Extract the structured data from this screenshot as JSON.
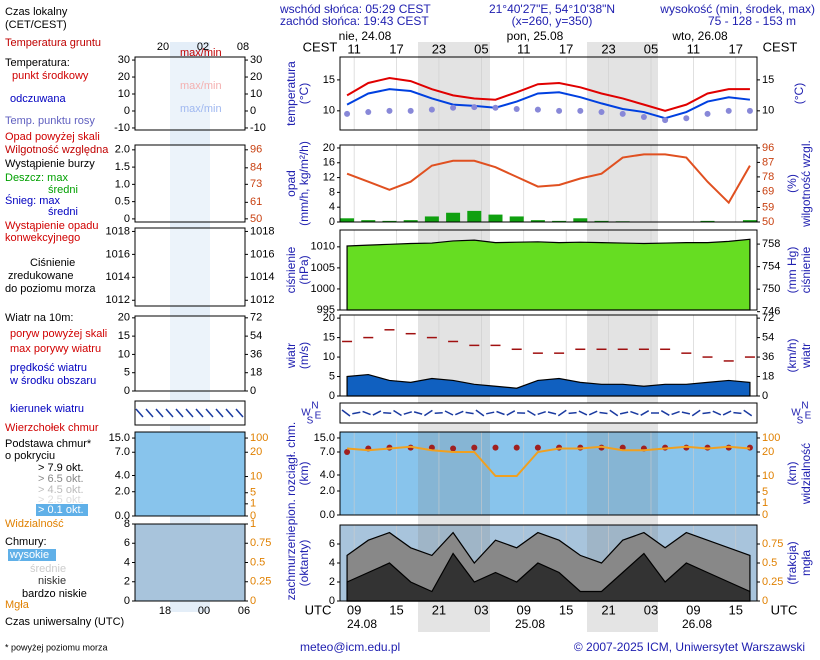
{
  "header": {
    "sunrise": "wschód słońca: 05:29 CEST",
    "sunset": "zachód słońca: 19:43 CEST",
    "coords": "21°40'27\"E, 54°10'38\"N",
    "grid": "(x=260, y=350)",
    "elevation_title": "wysokość (min, środek, max)",
    "elevation": "75 - 128 - 153 m"
  },
  "time_axis": {
    "local_label": "CEST",
    "utc_label": "UTC",
    "xlim": [
      7,
      66
    ],
    "local_ticks": [
      {
        "value": 9,
        "label": "11"
      },
      {
        "value": 15,
        "label": "17"
      },
      {
        "value": 21,
        "label": "23"
      },
      {
        "value": 27,
        "label": "05"
      },
      {
        "value": 33,
        "label": "11"
      },
      {
        "value": 39,
        "label": "17"
      },
      {
        "value": 45,
        "label": "23"
      },
      {
        "value": 51,
        "label": "05"
      },
      {
        "value": 57,
        "label": "11"
      },
      {
        "value": 63,
        "label": "17"
      }
    ],
    "utc_ticks": [
      {
        "value": 9,
        "label": "09"
      },
      15,
      21,
      {
        "value": 27,
        "label": "03"
      },
      {
        "value": 33,
        "label": "09"
      },
      {
        "value": 39,
        "label": "15"
      },
      {
        "value": 45,
        "label": "21"
      },
      {
        "value": 51,
        "label": "03"
      },
      {
        "value": 57,
        "label": "09"
      },
      {
        "value": 63,
        "label": "15"
      }
    ],
    "days_local": [
      "nie, 24.08",
      "pon, 25.08",
      "wto, 26.08"
    ],
    "days_utc": [
      "24.08",
      "25.08",
      "26.08"
    ],
    "compass": [
      "N",
      "W",
      "E",
      "S"
    ]
  },
  "legend": {
    "items": [
      "Czas lokalny",
      "(CET/CEST)",
      "Temperatura gruntu",
      "max/min",
      "Temperatura:",
      "punkt środkowy",
      "max/min",
      "odczuwana",
      "max/min",
      "Temp. punktu rosy",
      "Opad powyżej skali",
      "Wilgotność względna",
      "Wystąpienie burzy",
      "Deszcz: max",
      "średni",
      "Śnieg: max",
      "średni",
      "Wystąpienie opadu",
      "konwekcyjnego",
      "Ciśnienie",
      "zredukowane",
      "do poziomu morza",
      "Wiatr na 10m:",
      "poryw powyżej skali",
      "max porywy wiatru",
      "prędkość wiatru",
      "w środku obszaru",
      "kierunek wiatru",
      "Wierzchołek chmur",
      "Podstawa chmur*",
      "o pokryciu",
      "> 7.9 okt.",
      "> 6.5 okt.",
      "> 4.5 okt.",
      "> 2.5 okt.",
      "> 0.1 okt.",
      "Widzialność",
      "Chmury:",
      "wysokie",
      "średnie",
      "niskie",
      "bardzo niskie",
      "Mgła",
      "Czas uniwersalny (UTC)"
    ],
    "top_hours": [
      "20",
      "02",
      "08"
    ],
    "bottom_hours": [
      "18",
      "00",
      "06"
    ]
  },
  "legend_panels": [
    {
      "ylim": [
        -11.2,
        31.8
      ],
      "yticks": [
        30,
        20,
        10,
        0,
        -10
      ],
      "y2lim": [
        -11.2,
        31.8
      ],
      "y2ticks": [
        30,
        20,
        10,
        0,
        -10
      ]
    },
    {
      "ylim": [
        -0.09,
        2.14
      ],
      "yticks": [
        {
          "value": 2,
          "label": "2.0"
        },
        1.5,
        {
          "value": 1,
          "label": "1.0"
        },
        0.5,
        0
      ],
      "y2lim": [
        47.9,
        99.2
      ],
      "y2ticks": [
        96,
        84,
        73,
        61,
        50
      ]
    },
    {
      "ylim": [
        1011.5,
        1018.3
      ],
      "yticks": [
        1018,
        1016,
        1014,
        1012
      ],
      "y2lim": [
        1011.5,
        1018.3
      ],
      "y2ticks": [
        1018,
        1016,
        1014,
        1012
      ]
    },
    {
      "ylim": [
        0,
        20.5
      ],
      "yticks": [
        20,
        15,
        10,
        5,
        0
      ],
      "y2lim": [
        0,
        73.8
      ],
      "y2ticks": [
        72,
        54,
        36,
        18,
        0
      ]
    },
    {
      "scale": "piecewise",
      "yticks": [
        {
          "value": 0,
          "label": "0.0"
        },
        {
          "value": 2,
          "label": "2.0"
        },
        {
          "value": 4,
          "label": "4.0"
        },
        {
          "value": 7,
          "label": "7.0"
        },
        {
          "value": 15,
          "label": "15.0"
        }
      ],
      "y2ticks": [
        0,
        1,
        5,
        10,
        20,
        100
      ]
    },
    {
      "ylim": [
        0,
        8
      ],
      "yticks": [
        0,
        2,
        4,
        6,
        8
      ],
      "y2lim": [
        0,
        1
      ],
      "y2ticks": [
        0,
        0.25,
        0.5,
        0.75,
        1
      ]
    }
  ],
  "chart_data": [
    {
      "type": "line",
      "y_label": [
        "temperatura",
        "(°C)"
      ],
      "y2_label": [
        "(°C)"
      ],
      "ylim": [
        6.9,
        18.7
      ],
      "yticks": [
        10,
        15
      ],
      "y2lim": [
        6.9,
        18.7
      ],
      "y2ticks": [
        10,
        15
      ],
      "x": [
        8,
        11,
        14,
        17,
        20,
        23,
        26,
        29,
        32,
        35,
        38,
        41,
        44,
        47,
        50,
        53,
        56,
        59,
        62,
        65
      ],
      "series": [
        {
          "color": "#e00000",
          "style": "line",
          "values": [
            12.5,
            14.5,
            15.3,
            14.8,
            13.5,
            12.5,
            12.0,
            11.8,
            13.0,
            14.3,
            14.5,
            13.8,
            12.8,
            12.0,
            11.0,
            10.0,
            11.0,
            12.8,
            13.5,
            13.5
          ]
        },
        {
          "color": "#0040e0",
          "style": "line",
          "values": [
            11,
            12.8,
            13.5,
            13.2,
            12,
            11,
            10.8,
            10.5,
            11.5,
            12.8,
            13,
            12.2,
            11.2,
            10.3,
            9.8,
            8.8,
            9.8,
            11.5,
            12.2,
            11.8
          ]
        },
        {
          "color": "#8888d8",
          "style": "dots",
          "values": [
            9.5,
            9.8,
            10,
            10,
            10.2,
            10.5,
            10.6,
            10.5,
            10.3,
            10.2,
            10,
            10,
            9.8,
            9.5,
            9,
            8.5,
            8.8,
            9.5,
            10,
            10
          ]
        }
      ]
    },
    {
      "type": "bar",
      "y_label": [
        "opad",
        "(mm/h, kg/m²/h)"
      ],
      "y2_label": [
        "(%)",
        "wilgotność wzgl."
      ],
      "ylim": [
        0,
        20.8
      ],
      "yticks": [
        0,
        4,
        8,
        12,
        16,
        20
      ],
      "y2lim": [
        50,
        97.8
      ],
      "y2ticks": [
        50,
        59,
        69,
        78,
        87,
        96
      ],
      "x": [
        8,
        11,
        14,
        17,
        20,
        23,
        26,
        29,
        32,
        35,
        38,
        41,
        44,
        47,
        50,
        53,
        56,
        59,
        62,
        65
      ],
      "series": [
        {
          "color": "#10a010",
          "style": "bars",
          "values": [
            1,
            0.5,
            0.3,
            0.5,
            1.5,
            2.5,
            3,
            2,
            1.5,
            0.5,
            0.3,
            1,
            0.3,
            0.2,
            0,
            0,
            0,
            0.3,
            0,
            0.5
          ]
        },
        {
          "color": "#e05020",
          "style": "line",
          "axis": "y2",
          "values": [
            80,
            75,
            70,
            75,
            85,
            88,
            88,
            84,
            78,
            72,
            73,
            77,
            80,
            90,
            92,
            92,
            90,
            75,
            62,
            85
          ]
        }
      ]
    },
    {
      "type": "area",
      "y_label": [
        "ciśnienie",
        "(hPa)"
      ],
      "y2_label": [
        "(mm Hg)",
        "ciśnienie"
      ],
      "ylim": [
        995,
        1014
      ],
      "yticks": [
        995,
        1000,
        1005,
        1010
      ],
      "y2lim": [
        746.3,
        760.5
      ],
      "y2ticks": [
        746,
        750,
        754,
        758
      ],
      "x": [
        8,
        11,
        14,
        17,
        20,
        23,
        26,
        29,
        32,
        35,
        38,
        41,
        44,
        47,
        50,
        53,
        56,
        59,
        62,
        65
      ],
      "series": [
        {
          "color": "#66dd22",
          "style": "area",
          "values": [
            1010.2,
            1010.4,
            1010.6,
            1010.8,
            1010.9,
            1011.4,
            1011.6,
            1011.0,
            1011.1,
            1011.2,
            1011.0,
            1011.1,
            1011.0,
            1010.9,
            1010.8,
            1010.9,
            1011.0,
            1011.0,
            1011.3,
            1011.8
          ]
        }
      ]
    },
    {
      "type": "area",
      "y_label": [
        "wiatr",
        "(m/s)"
      ],
      "y2_label": [
        "(km/h)",
        "wiatr"
      ],
      "ylim": [
        0,
        20.8
      ],
      "yticks": [
        0,
        5,
        10,
        15,
        20
      ],
      "y2lim": [
        0,
        74.9
      ],
      "y2ticks": [
        0,
        18,
        36,
        54,
        72
      ],
      "x": [
        8,
        11,
        14,
        17,
        20,
        23,
        26,
        29,
        32,
        35,
        38,
        41,
        44,
        47,
        50,
        53,
        56,
        59,
        62,
        65
      ],
      "series": [
        {
          "color": "#1060c0",
          "style": "area",
          "values": [
            5,
            5.5,
            4,
            3.5,
            4.5,
            4,
            3,
            2.5,
            2,
            4,
            4.5,
            3.5,
            3,
            3,
            2.5,
            3,
            3,
            3.5,
            4,
            3.5
          ]
        },
        {
          "color": "#a01010",
          "style": "dashes",
          "values": [
            14,
            15,
            17,
            16,
            15,
            14,
            13,
            13,
            12,
            11,
            11,
            12,
            12,
            12,
            12,
            12,
            11,
            10,
            9,
            10
          ]
        }
      ]
    },
    {
      "type": "line",
      "scale": "piecewise",
      "y_label": [
        "pion. rozciągł. chm.",
        "(km)"
      ],
      "y2_label": [
        "(km)",
        "widzialność"
      ],
      "yticks": [
        {
          "value": 0,
          "label": "0.0"
        },
        {
          "value": 2,
          "label": "2.0"
        },
        {
          "value": 4,
          "label": "4.0"
        },
        {
          "value": 7,
          "label": "7.0"
        },
        {
          "value": 15,
          "label": "15.0"
        }
      ],
      "y2ticks": [
        0,
        1,
        5,
        10,
        20,
        100
      ],
      "x": [
        8,
        11,
        14,
        17,
        20,
        23,
        26,
        29,
        32,
        35,
        38,
        41,
        44,
        47,
        50,
        53,
        56,
        59,
        62,
        65
      ],
      "series": [
        {
          "color": "#a02020",
          "style": "dots",
          "values": [
            7,
            9,
            9.5,
            9.5,
            9.5,
            9,
            9.5,
            9.5,
            9.5,
            9.5,
            9.5,
            9.5,
            9.5,
            9.5,
            9,
            9.5,
            9.5,
            9.5,
            9.5,
            9.5
          ]
        },
        {
          "color": "#f0a020",
          "style": "line",
          "axis": "y2",
          "values": [
            40,
            30,
            40,
            50,
            30,
            20,
            20,
            10,
            10,
            20,
            40,
            40,
            50,
            30,
            30,
            40,
            50,
            40,
            50,
            40
          ]
        }
      ]
    },
    {
      "type": "area",
      "y_label": [
        "zachmurzenie",
        "(oktanty)"
      ],
      "y2_label": [
        "(frakcja)",
        "mgła"
      ],
      "ylim": [
        0,
        8
      ],
      "yticks": [
        0,
        2,
        4,
        6
      ],
      "y2lim": [
        0,
        1
      ],
      "y2ticks": [
        0,
        0.25,
        0.5,
        0.75
      ],
      "x": [
        8,
        11,
        14,
        17,
        20,
        23,
        26,
        29,
        32,
        35,
        38,
        41,
        44,
        47,
        50,
        53,
        56,
        59,
        62,
        65
      ],
      "series": [
        {
          "color": "#888888",
          "style": "area",
          "values": [
            4.8,
            6.4,
            7.2,
            5.6,
            4.8,
            7.2,
            4,
            6.4,
            5.6,
            7.2,
            6.4,
            4.8,
            4,
            6.4,
            7.2,
            5.6,
            7.2,
            6.4,
            5.6,
            4.8
          ]
        },
        {
          "color": "#333333",
          "style": "area",
          "values": [
            2,
            3,
            4,
            2,
            1,
            5,
            2,
            3,
            2,
            4,
            3,
            1,
            1,
            3,
            5,
            2,
            4,
            3,
            2,
            1
          ]
        }
      ]
    }
  ],
  "footer": {
    "note": "* powyżej poziomu morza",
    "email": "meteo@icm.edu.pl",
    "copyright": "© 2007-2025 ICM, Uniwersytet Warszawski"
  }
}
